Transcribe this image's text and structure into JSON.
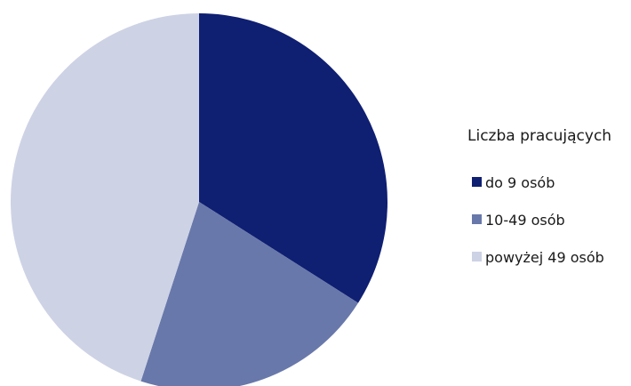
{
  "chart_data": {
    "type": "pie",
    "title": "",
    "legend_title": "Liczba pracujących",
    "legend_position": "right",
    "start_angle_deg": 0,
    "direction": "clockwise",
    "slices": [
      {
        "label": "do 9 osób",
        "value": 34.0,
        "color": "#0f1f72"
      },
      {
        "label": "10-49 osób",
        "value": 21.0,
        "color": "#6878aa"
      },
      {
        "label": "powyżej 49 osób",
        "value": 45.0,
        "color": "#cdd2e5"
      }
    ]
  }
}
